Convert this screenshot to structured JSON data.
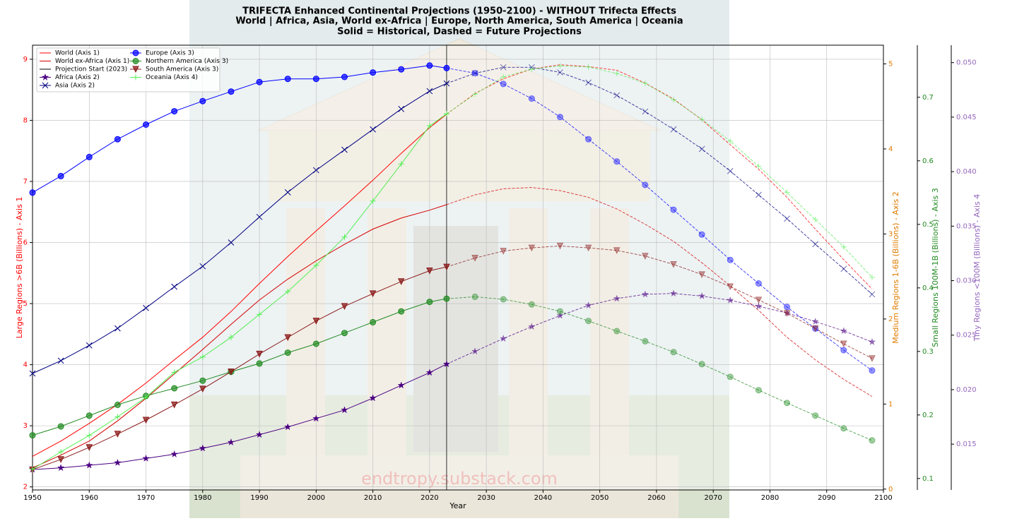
{
  "chart_data": {
    "type": "line",
    "title": [
      "TRIFECTA Enhanced Continental Projections (1950-2100) - WITHOUT Trifecta Effects",
      "World | Africa, Asia, World ex-Africa | Europe, North America, South America | Oceania",
      "Solid = Historical, Dashed = Future Projections"
    ],
    "xlabel": "Year",
    "xlim": [
      1950,
      2100
    ],
    "xticks": [
      1950,
      1960,
      1970,
      1980,
      1990,
      2000,
      2010,
      2020,
      2030,
      2040,
      2050,
      2060,
      2070,
      2080,
      2090,
      2100
    ],
    "ylabel": "Large Regions >6B (Billions) - Axis 1",
    "ylim": [
      1.95,
      9.23
    ],
    "yticks": [
      2,
      3,
      4,
      5,
      6,
      7,
      8,
      9
    ],
    "y2label": "Medium Regions 1-6B (Billions) - Axis 2",
    "y2lim": [
      -0.01,
      5.22
    ],
    "y2ticks": [
      0,
      1,
      2,
      3,
      4,
      5
    ],
    "y3label": "Small Regions 100M-1B (Billions) - Axis 3",
    "y3lim": [
      0.082,
      0.782
    ],
    "y3ticks": [
      0.1,
      0.2,
      0.3,
      0.4,
      0.5,
      0.6,
      0.7
    ],
    "y4label": "Tiny Regions <100M (Billions) - Axis 4",
    "y4lim": [
      0.0108,
      0.0516
    ],
    "y4ticks": [
      0.015,
      {
        "value": 0.02,
        "label": "0.020"
      },
      0.025,
      {
        "value": 0.03,
        "label": "0.030"
      },
      0.035,
      {
        "value": 0.04,
        "label": "0.040"
      },
      0.045,
      {
        "value": 0.05,
        "label": "0.050"
      }
    ],
    "grid": true,
    "legend": "upper left",
    "watermark": "endtropy.substack.com",
    "projection_start": {
      "name": "Projection Start (2023)",
      "x": 2023,
      "color": "#000000"
    },
    "x": [
      1950,
      1955,
      1960,
      1965,
      1970,
      1975,
      1980,
      1985,
      1990,
      1995,
      2000,
      2005,
      2010,
      2015,
      2020,
      2023,
      2028,
      2033,
      2038,
      2043,
      2048,
      2053,
      2058,
      2063,
      2068,
      2073,
      2078,
      2083,
      2088,
      2093,
      2098
    ],
    "series": [
      {
        "name": "World (Axis 1)",
        "color": "#ff0000",
        "axis": "y",
        "marker": "none",
        "values": [
          2.5,
          2.75,
          3.04,
          3.35,
          3.7,
          4.08,
          4.45,
          4.87,
          5.33,
          5.77,
          6.19,
          6.6,
          7.02,
          7.46,
          7.88,
          8.1,
          8.44,
          8.68,
          8.84,
          8.91,
          8.88,
          8.82,
          8.61,
          8.35,
          8.01,
          7.6,
          7.2,
          6.74,
          6.22,
          5.72,
          5.24
        ]
      },
      {
        "name": "World ex-Africa (Axis 1)",
        "color": "#d40000",
        "axis": "y",
        "marker": "none",
        "values": [
          2.31,
          2.52,
          2.75,
          3.08,
          3.45,
          3.85,
          4.25,
          4.66,
          5.06,
          5.4,
          5.7,
          5.97,
          6.22,
          6.4,
          6.53,
          6.62,
          6.78,
          6.88,
          6.9,
          6.85,
          6.74,
          6.55,
          6.3,
          6.02,
          5.67,
          5.29,
          4.89,
          4.45,
          4.08,
          3.76,
          3.48
        ]
      },
      {
        "name": "Africa (Axis 2)",
        "color": "#4b0082",
        "axis": "y2",
        "marker": "star",
        "values": [
          0.23,
          0.25,
          0.28,
          0.31,
          0.36,
          0.41,
          0.48,
          0.55,
          0.64,
          0.73,
          0.83,
          0.93,
          1.07,
          1.22,
          1.37,
          1.47,
          1.62,
          1.77,
          1.91,
          2.04,
          2.16,
          2.24,
          2.29,
          2.3,
          2.27,
          2.22,
          2.15,
          2.07,
          1.97,
          1.86,
          1.73
        ]
      },
      {
        "name": "Asia (Axis 2)",
        "color": "#000080",
        "axis": "y2",
        "marker": "x",
        "values": [
          1.36,
          1.51,
          1.69,
          1.89,
          2.13,
          2.38,
          2.62,
          2.9,
          3.2,
          3.49,
          3.75,
          3.99,
          4.23,
          4.47,
          4.68,
          4.77,
          4.89,
          4.96,
          4.96,
          4.9,
          4.78,
          4.63,
          4.44,
          4.23,
          4.0,
          3.74,
          3.46,
          3.18,
          2.88,
          2.59,
          2.29
        ]
      },
      {
        "name": "Europe (Axis 3)",
        "color": "#0000ff",
        "axis": "y3",
        "marker": "circle",
        "values": [
          0.55,
          0.576,
          0.606,
          0.634,
          0.657,
          0.678,
          0.694,
          0.709,
          0.724,
          0.729,
          0.729,
          0.732,
          0.739,
          0.744,
          0.75,
          0.746,
          0.738,
          0.721,
          0.698,
          0.669,
          0.634,
          0.599,
          0.562,
          0.523,
          0.484,
          0.444,
          0.407,
          0.37,
          0.336,
          0.302,
          0.27
        ]
      },
      {
        "name": "Northern America (Axis 3)",
        "color": "#228b22",
        "axis": "y3",
        "marker": "circle",
        "values": [
          0.168,
          0.182,
          0.199,
          0.216,
          0.23,
          0.242,
          0.254,
          0.268,
          0.281,
          0.298,
          0.312,
          0.329,
          0.346,
          0.363,
          0.378,
          0.383,
          0.386,
          0.382,
          0.374,
          0.363,
          0.348,
          0.332,
          0.316,
          0.299,
          0.28,
          0.26,
          0.239,
          0.219,
          0.199,
          0.179,
          0.16
        ]
      },
      {
        "name": "South America (Axis 3)",
        "color": "#8b1a1a",
        "axis": "y3",
        "marker": "triangle-down",
        "values": [
          0.114,
          0.13,
          0.149,
          0.17,
          0.192,
          0.216,
          0.241,
          0.268,
          0.296,
          0.322,
          0.348,
          0.371,
          0.391,
          0.41,
          0.427,
          0.433,
          0.447,
          0.458,
          0.463,
          0.466,
          0.463,
          0.459,
          0.45,
          0.437,
          0.421,
          0.402,
          0.381,
          0.36,
          0.336,
          0.312,
          0.289
        ]
      },
      {
        "name": "Oceania (Axis 4)",
        "color": "#55ee55",
        "axis": "y4",
        "marker": "plus",
        "values": [
          0.0127,
          0.0143,
          0.0158,
          0.0175,
          0.0193,
          0.0216,
          0.023,
          0.0248,
          0.0269,
          0.029,
          0.0314,
          0.034,
          0.0373,
          0.0407,
          0.0442,
          0.0453,
          0.0471,
          0.0487,
          0.0494,
          0.0497,
          0.0496,
          0.049,
          0.0481,
          0.0466,
          0.0448,
          0.0428,
          0.0405,
          0.0381,
          0.0356,
          0.0331,
          0.0303
        ]
      }
    ]
  }
}
